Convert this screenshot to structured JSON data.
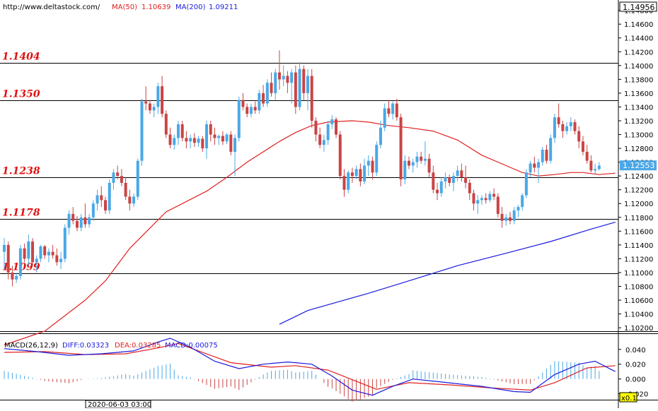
{
  "header": {
    "url": "http://www.deltastock.com/",
    "ma50_label": "MA(50)",
    "ma50_value": "1.10639",
    "ma200_label": "MA(200)",
    "ma200_value": "1.09211"
  },
  "macd_header": {
    "title": "MACD(26,12,9)",
    "diff": "DIFF:0.03323",
    "dea": "DEA:0.03285",
    "macd": "MACD:0.00075"
  },
  "footer": {
    "date_box": "2020-06-03 03:00",
    "zoom": "x0.1"
  },
  "colors": {
    "ma50": "#e02020",
    "ma200": "#1a1adc",
    "bull": "#4aa8e6",
    "bear": "#c94444",
    "level_text": "#e01010",
    "diff": "#1a1adc",
    "dea": "#e02020",
    "hist": "#c94444",
    "hist_pos": "#4aa8e6"
  },
  "chart_data": [
    {
      "type": "candlestick",
      "ylim": [
        1.1015,
        1.1495
      ],
      "y_ticks": [
        "1.14800",
        "1.14600",
        "1.14400",
        "1.14200",
        "1.14000",
        "1.13800",
        "1.13600",
        "1.13400",
        "1.13200",
        "1.13000",
        "1.12800",
        "1.12600",
        "1.12400",
        "1.12200",
        "1.12000",
        "1.11800",
        "1.11600",
        "1.11400",
        "1.11200",
        "1.11000",
        "1.10800",
        "1.10600",
        "1.10400",
        "1.10200"
      ],
      "top_price_label": "1.14956",
      "last_price_label": "1.12553",
      "levels": [
        {
          "label": "1.1404",
          "value": 1.1404
        },
        {
          "label": "1.1350",
          "value": 1.135
        },
        {
          "label": "1.1238",
          "value": 1.1238
        },
        {
          "label": "1.1178",
          "value": 1.1178
        },
        {
          "label": "1.1099",
          "value": 1.1099
        }
      ],
      "candles": [
        [
          1.113,
          1.115,
          1.1105,
          1.114
        ],
        [
          1.114,
          1.1145,
          1.109,
          1.11
        ],
        [
          1.11,
          1.111,
          1.108,
          1.109
        ],
        [
          1.109,
          1.11,
          1.1085,
          1.1095
        ],
        [
          1.1095,
          1.114,
          1.109,
          1.1135
        ],
        [
          1.1135,
          1.1142,
          1.1115,
          1.112
        ],
        [
          1.112,
          1.1155,
          1.111,
          1.1145
        ],
        [
          1.1145,
          1.115,
          1.111,
          1.1115
        ],
        [
          1.1115,
          1.1125,
          1.11,
          1.112
        ],
        [
          1.112,
          1.114,
          1.1115,
          1.1138
        ],
        [
          1.1138,
          1.114,
          1.112,
          1.1125
        ],
        [
          1.1125,
          1.1135,
          1.1115,
          1.113
        ],
        [
          1.113,
          1.114,
          1.112,
          1.1125
        ],
        [
          1.1125,
          1.1135,
          1.111,
          1.1115
        ],
        [
          1.1115,
          1.113,
          1.1105,
          1.112
        ],
        [
          1.112,
          1.117,
          1.1115,
          1.1165
        ],
        [
          1.1165,
          1.119,
          1.1155,
          1.1185
        ],
        [
          1.1185,
          1.1195,
          1.117,
          1.1175
        ],
        [
          1.1175,
          1.1182,
          1.116,
          1.1165
        ],
        [
          1.1165,
          1.1185,
          1.116,
          1.118
        ],
        [
          1.118,
          1.12,
          1.1165,
          1.117
        ],
        [
          1.117,
          1.1185,
          1.1165,
          1.118
        ],
        [
          1.118,
          1.1205,
          1.1175,
          1.12
        ],
        [
          1.12,
          1.122,
          1.119,
          1.1212
        ],
        [
          1.1212,
          1.1225,
          1.1195,
          1.1205
        ],
        [
          1.1205,
          1.121,
          1.1185,
          1.119
        ],
        [
          1.119,
          1.1235,
          1.1185,
          1.123
        ],
        [
          1.123,
          1.125,
          1.122,
          1.1245
        ],
        [
          1.1245,
          1.1255,
          1.1235,
          1.124
        ],
        [
          1.124,
          1.125,
          1.1225,
          1.123
        ],
        [
          1.123,
          1.1238,
          1.1205,
          1.121
        ],
        [
          1.121,
          1.122,
          1.119,
          1.12
        ],
        [
          1.12,
          1.1215,
          1.1195,
          1.121
        ],
        [
          1.121,
          1.1265,
          1.1205,
          1.1262
        ],
        [
          1.1262,
          1.1352,
          1.1255,
          1.1348
        ],
        [
          1.1348,
          1.137,
          1.1335,
          1.1345
        ],
        [
          1.1345,
          1.135,
          1.133,
          1.1335
        ],
        [
          1.1335,
          1.1345,
          1.1325,
          1.134
        ],
        [
          1.134,
          1.1375,
          1.133,
          1.137
        ],
        [
          1.137,
          1.1385,
          1.1325,
          1.133
        ],
        [
          1.133,
          1.1335,
          1.1295,
          1.13
        ],
        [
          1.13,
          1.131,
          1.128,
          1.1285
        ],
        [
          1.1285,
          1.13,
          1.1278,
          1.1295
        ],
        [
          1.1295,
          1.132,
          1.1285,
          1.1315
        ],
        [
          1.1315,
          1.132,
          1.129,
          1.1295
        ],
        [
          1.1295,
          1.1305,
          1.128,
          1.129
        ],
        [
          1.129,
          1.13,
          1.128,
          1.1295
        ],
        [
          1.1295,
          1.1302,
          1.1282,
          1.1288
        ],
        [
          1.1288,
          1.1298,
          1.1282,
          1.1294
        ],
        [
          1.1294,
          1.1298,
          1.1275,
          1.128
        ],
        [
          1.128,
          1.132,
          1.1265,
          1.1315
        ],
        [
          1.1315,
          1.132,
          1.129,
          1.13
        ],
        [
          1.13,
          1.131,
          1.1285,
          1.1295
        ],
        [
          1.1295,
          1.13,
          1.1285,
          1.1298
        ],
        [
          1.1298,
          1.1305,
          1.1285,
          1.129
        ],
        [
          1.129,
          1.1302,
          1.1286,
          1.13
        ],
        [
          1.13,
          1.1305,
          1.127,
          1.1275
        ],
        [
          1.1275,
          1.13,
          1.124,
          1.1295
        ],
        [
          1.1295,
          1.1355,
          1.129,
          1.135
        ],
        [
          1.135,
          1.136,
          1.1335,
          1.134
        ],
        [
          1.134,
          1.1345,
          1.1325,
          1.133
        ],
        [
          1.133,
          1.1345,
          1.1325,
          1.134
        ],
        [
          1.134,
          1.1348,
          1.133,
          1.1335
        ],
        [
          1.1335,
          1.1365,
          1.133,
          1.136
        ],
        [
          1.136,
          1.1372,
          1.134,
          1.1345
        ],
        [
          1.1345,
          1.138,
          1.134,
          1.1375
        ],
        [
          1.1375,
          1.139,
          1.1355,
          1.136
        ],
        [
          1.136,
          1.1395,
          1.135,
          1.139
        ],
        [
          1.139,
          1.1422,
          1.1365,
          1.138
        ],
        [
          1.138,
          1.14,
          1.137,
          1.1385
        ],
        [
          1.1385,
          1.1392,
          1.136,
          1.1375
        ],
        [
          1.1375,
          1.1395,
          1.1345,
          1.139
        ],
        [
          1.139,
          1.14,
          1.133,
          1.134
        ],
        [
          1.134,
          1.1405,
          1.1335,
          1.1395
        ],
        [
          1.1395,
          1.14,
          1.135,
          1.136
        ],
        [
          1.136,
          1.1395,
          1.1335,
          1.1385
        ],
        [
          1.1385,
          1.1395,
          1.131,
          1.132
        ],
        [
          1.132,
          1.1325,
          1.129,
          1.13
        ],
        [
          1.13,
          1.131,
          1.128,
          1.1285
        ],
        [
          1.1285,
          1.13,
          1.1275,
          1.1292
        ],
        [
          1.1292,
          1.132,
          1.1285,
          1.1315
        ],
        [
          1.1315,
          1.1328,
          1.1308,
          1.1322
        ],
        [
          1.1322,
          1.1325,
          1.1295,
          1.13
        ],
        [
          1.13,
          1.1305,
          1.1235,
          1.124
        ],
        [
          1.124,
          1.125,
          1.121,
          1.122
        ],
        [
          1.122,
          1.1248,
          1.1215,
          1.1245
        ],
        [
          1.1245,
          1.1252,
          1.123,
          1.124
        ],
        [
          1.124,
          1.1255,
          1.1235,
          1.125
        ],
        [
          1.125,
          1.1258,
          1.1225,
          1.1232
        ],
        [
          1.1232,
          1.1265,
          1.1228,
          1.1255
        ],
        [
          1.1255,
          1.127,
          1.124,
          1.1262
        ],
        [
          1.1262,
          1.1268,
          1.1235,
          1.1245
        ],
        [
          1.1245,
          1.129,
          1.124,
          1.1285
        ],
        [
          1.1285,
          1.132,
          1.128,
          1.131
        ],
        [
          1.131,
          1.1345,
          1.1305,
          1.1338
        ],
        [
          1.1338,
          1.135,
          1.1325,
          1.133
        ],
        [
          1.133,
          1.1348,
          1.1322,
          1.1345
        ],
        [
          1.1345,
          1.1352,
          1.132,
          1.1325
        ],
        [
          1.1325,
          1.133,
          1.1225,
          1.1235
        ],
        [
          1.1235,
          1.127,
          1.1228,
          1.1262
        ],
        [
          1.1262,
          1.1268,
          1.125,
          1.1255
        ],
        [
          1.1255,
          1.1265,
          1.1245,
          1.126
        ],
        [
          1.126,
          1.1275,
          1.1252,
          1.1268
        ],
        [
          1.1268,
          1.1275,
          1.1258,
          1.1262
        ],
        [
          1.1262,
          1.129,
          1.1255,
          1.1265
        ],
        [
          1.1265,
          1.1272,
          1.1238,
          1.1245
        ],
        [
          1.1245,
          1.1255,
          1.1215,
          1.122
        ],
        [
          1.122,
          1.123,
          1.1205,
          1.1215
        ],
        [
          1.1215,
          1.1238,
          1.121,
          1.1232
        ],
        [
          1.1232,
          1.1245,
          1.1222,
          1.1238
        ],
        [
          1.1238,
          1.1242,
          1.1225,
          1.123
        ],
        [
          1.123,
          1.1245,
          1.1218,
          1.124
        ],
        [
          1.124,
          1.1255,
          1.1232,
          1.1248
        ],
        [
          1.1248,
          1.1258,
          1.1232,
          1.1238
        ],
        [
          1.1238,
          1.1255,
          1.1222,
          1.123
        ],
        [
          1.123,
          1.1235,
          1.1205,
          1.1215
        ],
        [
          1.1215,
          1.122,
          1.119,
          1.12
        ],
        [
          1.12,
          1.1212,
          1.1185,
          1.1205
        ],
        [
          1.1205,
          1.1212,
          1.1198,
          1.1208
        ],
        [
          1.1208,
          1.1215,
          1.12,
          1.1205
        ],
        [
          1.1205,
          1.1218,
          1.1202,
          1.1214
        ],
        [
          1.1214,
          1.1222,
          1.1205,
          1.121
        ],
        [
          1.121,
          1.1215,
          1.118,
          1.1185
        ],
        [
          1.1185,
          1.1195,
          1.1165,
          1.1175
        ],
        [
          1.1175,
          1.1185,
          1.1168,
          1.118
        ],
        [
          1.118,
          1.1188,
          1.117,
          1.1175
        ],
        [
          1.1175,
          1.1195,
          1.117,
          1.119
        ],
        [
          1.119,
          1.1198,
          1.118,
          1.1195
        ],
        [
          1.1195,
          1.1215,
          1.119,
          1.1212
        ],
        [
          1.1212,
          1.125,
          1.1208,
          1.1245
        ],
        [
          1.1245,
          1.1262,
          1.1238,
          1.1258
        ],
        [
          1.1258,
          1.1268,
          1.1245,
          1.1252
        ],
        [
          1.1252,
          1.1265,
          1.123,
          1.126
        ],
        [
          1.126,
          1.1282,
          1.1255,
          1.1278
        ],
        [
          1.1278,
          1.1285,
          1.1258,
          1.1262
        ],
        [
          1.1262,
          1.13,
          1.1258,
          1.1295
        ],
        [
          1.1295,
          1.133,
          1.1288,
          1.1325
        ],
        [
          1.1325,
          1.1345,
          1.131,
          1.1315
        ],
        [
          1.1315,
          1.132,
          1.1295,
          1.1305
        ],
        [
          1.1305,
          1.1318,
          1.13,
          1.1312
        ],
        [
          1.1312,
          1.1325,
          1.1305,
          1.1318
        ],
        [
          1.1318,
          1.1322,
          1.13,
          1.1305
        ],
        [
          1.1305,
          1.1312,
          1.128,
          1.129
        ],
        [
          1.129,
          1.1298,
          1.127,
          1.1275
        ],
        [
          1.1275,
          1.1285,
          1.1258,
          1.1262
        ],
        [
          1.1262,
          1.127,
          1.1245,
          1.1248
        ],
        [
          1.1248,
          1.1258,
          1.1243,
          1.125
        ],
        [
          1.125,
          1.126,
          1.1248,
          1.1255
        ]
      ],
      "ma50": [
        [
          0,
          1.0995
        ],
        [
          10,
          1.1015
        ],
        [
          20,
          1.106
        ],
        [
          25,
          1.1088
        ],
        [
          31,
          1.1135
        ],
        [
          40,
          1.1188
        ],
        [
          50,
          1.1218
        ],
        [
          55,
          1.1238
        ],
        [
          60,
          1.126
        ],
        [
          68,
          1.129
        ],
        [
          72,
          1.1303
        ],
        [
          76,
          1.1313
        ],
        [
          80,
          1.1318
        ],
        [
          86,
          1.132
        ],
        [
          90,
          1.1318
        ],
        [
          95,
          1.1313
        ],
        [
          100,
          1.131
        ],
        [
          106,
          1.1305
        ],
        [
          112,
          1.1292
        ],
        [
          118,
          1.127
        ],
        [
          124,
          1.1255
        ],
        [
          128,
          1.1245
        ],
        [
          132,
          1.124
        ],
        [
          136,
          1.1242
        ],
        [
          140,
          1.1245
        ],
        [
          143,
          1.1245
        ],
        [
          147,
          1.1242
        ],
        [
          151,
          1.1244
        ]
      ],
      "ma200": [
        [
          68,
          1.1025
        ],
        [
          75,
          1.1045
        ],
        [
          90,
          1.107
        ],
        [
          100,
          1.1088
        ],
        [
          112,
          1.111
        ],
        [
          124,
          1.1128
        ],
        [
          135,
          1.1145
        ],
        [
          145,
          1.1163
        ],
        [
          151,
          1.1173
        ]
      ]
    },
    {
      "type": "macd",
      "ylim": [
        -0.028,
        0.056
      ],
      "y_ticks": [
        "0.040",
        "0.020",
        "0.000",
        "-0.020"
      ],
      "diff": [
        [
          0,
          0.041
        ],
        [
          8,
          0.037
        ],
        [
          16,
          0.032
        ],
        [
          24,
          0.034
        ],
        [
          32,
          0.038
        ],
        [
          38,
          0.05
        ],
        [
          41,
          0.055
        ],
        [
          46,
          0.043
        ],
        [
          52,
          0.024
        ],
        [
          58,
          0.014
        ],
        [
          64,
          0.02
        ],
        [
          70,
          0.023
        ],
        [
          76,
          0.02
        ],
        [
          81,
          0.004
        ],
        [
          86,
          -0.015
        ],
        [
          91,
          -0.022
        ],
        [
          96,
          -0.01
        ],
        [
          101,
          0.0
        ],
        [
          108,
          -0.004
        ],
        [
          118,
          -0.01
        ],
        [
          126,
          -0.017
        ],
        [
          130,
          -0.018
        ],
        [
          136,
          0.006
        ],
        [
          142,
          0.02
        ],
        [
          146,
          0.024
        ],
        [
          151,
          0.01
        ]
      ],
      "dea": [
        [
          0,
          0.036
        ],
        [
          10,
          0.037
        ],
        [
          20,
          0.033
        ],
        [
          30,
          0.034
        ],
        [
          38,
          0.042
        ],
        [
          43,
          0.048
        ],
        [
          48,
          0.038
        ],
        [
          56,
          0.022
        ],
        [
          66,
          0.016
        ],
        [
          72,
          0.018
        ],
        [
          80,
          0.012
        ],
        [
          86,
          -0.001
        ],
        [
          92,
          -0.014
        ],
        [
          100,
          -0.005
        ],
        [
          110,
          -0.008
        ],
        [
          120,
          -0.012
        ],
        [
          130,
          -0.015
        ],
        [
          136,
          -0.005
        ],
        [
          144,
          0.015
        ],
        [
          151,
          0.018
        ]
      ],
      "histogram_note": "histogram = diff - dea"
    }
  ]
}
